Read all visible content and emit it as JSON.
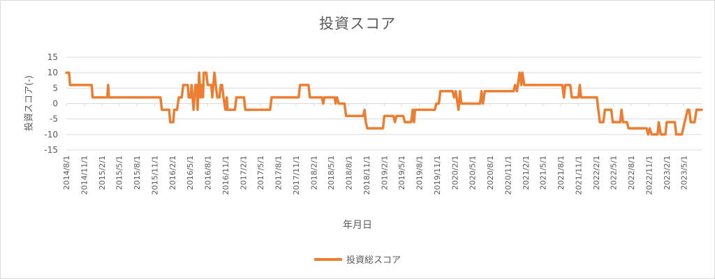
{
  "chart_data": {
    "type": "line",
    "title": "投資スコア",
    "xlabel": "年月日",
    "ylabel": "投資スコア(-)",
    "ylim": [
      -15,
      15
    ],
    "yticks": [
      "15",
      "10",
      "5",
      "0",
      "-5",
      "-10",
      "-15"
    ],
    "xlim": [
      "2014-08-01",
      "2023-08-01"
    ],
    "xtick_labels": [
      "2014/8/1",
      "2014/11/1",
      "2015/2/1",
      "2015/5/1",
      "2015/8/1",
      "2015/11/1",
      "2016/2/1",
      "2016/5/1",
      "2016/8/1",
      "2016/11/1",
      "2017/2/1",
      "2017/5/1",
      "2017/8/1",
      "2017/11/1",
      "2018/2/1",
      "2018/5/1",
      "2018/8/1",
      "2018/11/1",
      "2019/2/1",
      "2019/5/1",
      "2019/8/1",
      "2019/11/1",
      "2020/2/1",
      "2020/5/1",
      "2020/8/1",
      "2020/11/1",
      "2021/2/1",
      "2021/5/1",
      "2021/8/1",
      "2021/11/1",
      "2022/2/1",
      "2022/5/1",
      "2022/8/1",
      "2022/11/1",
      "2023/2/1",
      "2023/5/1"
    ],
    "grid": true,
    "legend_position": "bottom",
    "series": [
      {
        "name": "投資総スコア",
        "color": "#ED7D31",
        "points": [
          [
            "2014-08-01",
            10
          ],
          [
            "2014-08-15",
            10
          ],
          [
            "2014-08-20",
            6
          ],
          [
            "2014-12-10",
            6
          ],
          [
            "2014-12-15",
            2
          ],
          [
            "2015-03-01",
            2
          ],
          [
            "2015-03-05",
            6
          ],
          [
            "2015-03-10",
            2
          ],
          [
            "2015-12-01",
            2
          ],
          [
            "2015-12-08",
            -2
          ],
          [
            "2016-01-15",
            -2
          ],
          [
            "2016-01-20",
            -6
          ],
          [
            "2016-02-05",
            -6
          ],
          [
            "2016-02-10",
            -2
          ],
          [
            "2016-02-25",
            -2
          ],
          [
            "2016-03-05",
            2
          ],
          [
            "2016-03-20",
            2
          ],
          [
            "2016-03-28",
            6
          ],
          [
            "2016-04-20",
            6
          ],
          [
            "2016-04-25",
            2
          ],
          [
            "2016-05-05",
            2
          ],
          [
            "2016-05-10",
            6
          ],
          [
            "2016-05-20",
            -2
          ],
          [
            "2016-05-30",
            6
          ],
          [
            "2016-06-05",
            6
          ],
          [
            "2016-06-10",
            -2
          ],
          [
            "2016-06-18",
            10
          ],
          [
            "2016-06-25",
            2
          ],
          [
            "2016-07-01",
            6
          ],
          [
            "2016-07-08",
            2
          ],
          [
            "2016-07-12",
            10
          ],
          [
            "2016-07-25",
            10
          ],
          [
            "2016-08-01",
            6
          ],
          [
            "2016-08-20",
            6
          ],
          [
            "2016-08-25",
            2
          ],
          [
            "2016-09-05",
            10
          ],
          [
            "2016-09-12",
            6
          ],
          [
            "2016-09-20",
            2
          ],
          [
            "2016-10-01",
            2
          ],
          [
            "2016-10-08",
            6
          ],
          [
            "2016-10-15",
            6
          ],
          [
            "2016-10-22",
            2
          ],
          [
            "2016-11-01",
            -2
          ],
          [
            "2016-11-08",
            2
          ],
          [
            "2016-11-12",
            -2
          ],
          [
            "2016-12-20",
            -2
          ],
          [
            "2016-12-28",
            2
          ],
          [
            "2017-02-05",
            2
          ],
          [
            "2017-02-12",
            -2
          ],
          [
            "2017-06-20",
            -2
          ],
          [
            "2017-06-28",
            2
          ],
          [
            "2017-11-15",
            2
          ],
          [
            "2017-11-22",
            6
          ],
          [
            "2018-01-05",
            6
          ],
          [
            "2018-01-12",
            2
          ],
          [
            "2018-03-15",
            2
          ],
          [
            "2018-03-22",
            0
          ],
          [
            "2018-03-28",
            2
          ],
          [
            "2018-05-20",
            2
          ],
          [
            "2018-05-25",
            0
          ],
          [
            "2018-06-01",
            2
          ],
          [
            "2018-06-10",
            0
          ],
          [
            "2018-07-10",
            0
          ],
          [
            "2018-07-18",
            -4
          ],
          [
            "2018-10-15",
            -4
          ],
          [
            "2018-10-22",
            -2
          ],
          [
            "2018-10-28",
            -6
          ],
          [
            "2018-11-05",
            -8
          ],
          [
            "2019-01-25",
            -8
          ],
          [
            "2019-02-01",
            -4
          ],
          [
            "2019-03-20",
            -4
          ],
          [
            "2019-03-28",
            -6
          ],
          [
            "2019-04-05",
            -4
          ],
          [
            "2019-05-10",
            -4
          ],
          [
            "2019-05-18",
            -6
          ],
          [
            "2019-06-20",
            -6
          ],
          [
            "2019-06-28",
            -2
          ],
          [
            "2019-07-05",
            -6
          ],
          [
            "2019-07-10",
            -2
          ],
          [
            "2019-10-20",
            -2
          ],
          [
            "2019-10-28",
            0
          ],
          [
            "2019-11-10",
            0
          ],
          [
            "2019-11-18",
            4
          ],
          [
            "2020-01-20",
            4
          ],
          [
            "2020-01-28",
            2
          ],
          [
            "2020-02-05",
            4
          ],
          [
            "2020-02-20",
            -2
          ],
          [
            "2020-02-28",
            4
          ],
          [
            "2020-03-05",
            0
          ],
          [
            "2020-06-10",
            0
          ],
          [
            "2020-06-18",
            4
          ],
          [
            "2020-06-25",
            0
          ],
          [
            "2020-07-05",
            4
          ],
          [
            "2020-12-01",
            4
          ],
          [
            "2020-12-08",
            6
          ],
          [
            "2020-12-18",
            4
          ],
          [
            "2021-01-01",
            10
          ],
          [
            "2021-01-10",
            6
          ],
          [
            "2021-01-15",
            10
          ],
          [
            "2021-01-25",
            6
          ],
          [
            "2021-08-10",
            6
          ],
          [
            "2021-08-18",
            2
          ],
          [
            "2021-08-25",
            6
          ],
          [
            "2021-09-20",
            6
          ],
          [
            "2021-09-28",
            2
          ],
          [
            "2021-11-01",
            2
          ],
          [
            "2021-11-08",
            6
          ],
          [
            "2021-11-15",
            2
          ],
          [
            "2022-02-05",
            2
          ],
          [
            "2022-02-12",
            -2
          ],
          [
            "2022-02-20",
            -6
          ],
          [
            "2022-03-10",
            -6
          ],
          [
            "2022-03-18",
            -2
          ],
          [
            "2022-04-20",
            -2
          ],
          [
            "2022-04-28",
            -6
          ],
          [
            "2022-06-05",
            -6
          ],
          [
            "2022-06-12",
            -2
          ],
          [
            "2022-06-20",
            -6
          ],
          [
            "2022-07-10",
            -6
          ],
          [
            "2022-07-18",
            -8
          ],
          [
            "2022-10-20",
            -8
          ],
          [
            "2022-10-28",
            -10
          ],
          [
            "2022-11-05",
            -8
          ],
          [
            "2022-11-15",
            -10
          ],
          [
            "2022-12-15",
            -10
          ],
          [
            "2022-12-22",
            -6
          ],
          [
            "2023-01-01",
            -10
          ],
          [
            "2023-01-25",
            -10
          ],
          [
            "2023-02-01",
            -6
          ],
          [
            "2023-03-15",
            -6
          ],
          [
            "2023-03-22",
            -10
          ],
          [
            "2023-04-20",
            -10
          ],
          [
            "2023-05-05",
            -6
          ],
          [
            "2023-05-20",
            -2
          ],
          [
            "2023-05-28",
            -2
          ],
          [
            "2023-06-05",
            -6
          ],
          [
            "2023-06-25",
            -6
          ],
          [
            "2023-07-05",
            -2
          ],
          [
            "2023-08-01",
            -2
          ]
        ]
      }
    ]
  }
}
